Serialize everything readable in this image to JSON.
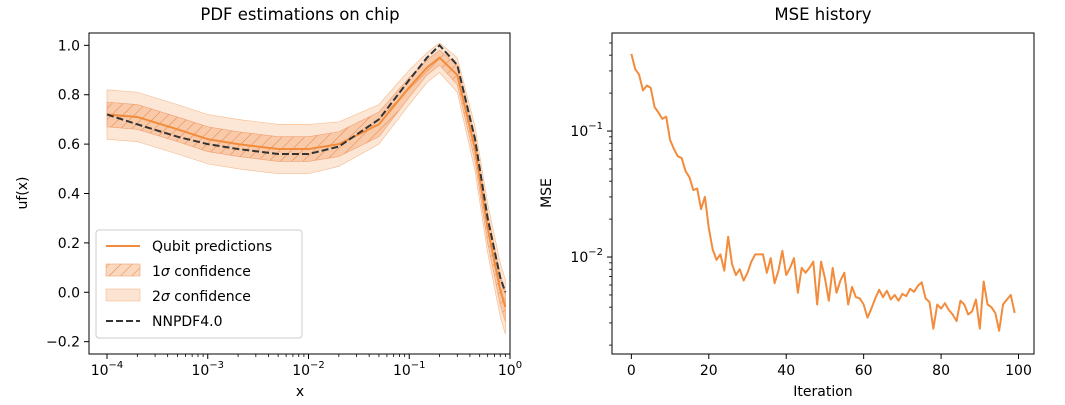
{
  "chart_data": [
    {
      "type": "line",
      "title": "PDF estimations on chip",
      "xlabel": "x",
      "ylabel": "uf(x)",
      "xscale": "log",
      "xlim": [
        0.0001,
        1
      ],
      "ylim": [
        -0.25,
        1.05
      ],
      "xticks": [
        0.0001,
        0.001,
        0.01,
        0.1,
        1
      ],
      "xtick_labels": [
        {
          "base": "10",
          "exp": "−4"
        },
        {
          "base": "10",
          "exp": "−3"
        },
        {
          "base": "10",
          "exp": "−2"
        },
        {
          "base": "10",
          "exp": "−1"
        },
        {
          "base": "10",
          "exp": "0"
        }
      ],
      "yticks": [
        -0.2,
        0.0,
        0.2,
        0.4,
        0.6,
        0.8,
        1.0
      ],
      "ytick_labels": [
        "−0.2",
        "0.0",
        "0.2",
        "0.4",
        "0.6",
        "0.8",
        "1.0"
      ],
      "legend_position": "lower-left",
      "colors": {
        "prediction": "#f28c3c",
        "band": "#f5a46a",
        "reference": "#333333"
      },
      "legend": [
        {
          "key": "pred",
          "label": "Qubit predictions"
        },
        {
          "key": "sig1",
          "label_prefix": "1",
          "label_sigma": "σ",
          "label_suffix": " confidence"
        },
        {
          "key": "sig2",
          "label_prefix": "2",
          "label_sigma": "σ",
          "label_suffix": " confidence"
        },
        {
          "key": "ref",
          "label": "NNPDF4.0"
        }
      ],
      "series": [
        {
          "name": "Qubit predictions",
          "x": [
            0.0001,
            0.0002,
            0.0005,
            0.001,
            0.002,
            0.005,
            0.01,
            0.02,
            0.05,
            0.1,
            0.15,
            0.2,
            0.3,
            0.45,
            0.6,
            0.8,
            0.9
          ],
          "y": [
            0.72,
            0.71,
            0.66,
            0.62,
            0.6,
            0.58,
            0.58,
            0.6,
            0.68,
            0.83,
            0.91,
            0.95,
            0.88,
            0.58,
            0.26,
            0.01,
            -0.06
          ],
          "sigma1": [
            0.05,
            0.05,
            0.05,
            0.05,
            0.05,
            0.05,
            0.05,
            0.05,
            0.05,
            0.04,
            0.03,
            0.03,
            0.04,
            0.05,
            0.06,
            0.06,
            0.06
          ],
          "sigma2": [
            0.1,
            0.1,
            0.1,
            0.1,
            0.1,
            0.1,
            0.1,
            0.09,
            0.08,
            0.07,
            0.06,
            0.06,
            0.07,
            0.09,
            0.1,
            0.11,
            0.11
          ]
        },
        {
          "name": "NNPDF4.0",
          "x": [
            0.0001,
            0.0002,
            0.0005,
            0.001,
            0.002,
            0.005,
            0.01,
            0.02,
            0.05,
            0.1,
            0.15,
            0.2,
            0.3,
            0.45,
            0.6,
            0.8,
            0.9
          ],
          "y": [
            0.72,
            0.68,
            0.63,
            0.6,
            0.58,
            0.56,
            0.56,
            0.59,
            0.7,
            0.86,
            0.95,
            1.0,
            0.92,
            0.62,
            0.3,
            0.06,
            0.0
          ]
        }
      ]
    },
    {
      "type": "line",
      "title": "MSE history",
      "xlabel": "Iteration",
      "ylabel": "MSE",
      "yscale": "log",
      "xlim": [
        -5,
        104
      ],
      "ylim": [
        0.0017,
        0.6
      ],
      "xticks": [
        0,
        20,
        40,
        60,
        80,
        100
      ],
      "xtick_labels": [
        "0",
        "20",
        "40",
        "60",
        "80",
        "100"
      ],
      "ytick_major": [
        0.1,
        0.01
      ],
      "ytick_major_labels": [
        {
          "base": "10",
          "exp": "−1"
        },
        {
          "base": "10",
          "exp": "−2"
        }
      ],
      "color": "#f28c3c",
      "series": [
        {
          "x": [
            0,
            1,
            2,
            3,
            4,
            5,
            6,
            7,
            8,
            9,
            10,
            11,
            12,
            13,
            14,
            15,
            16,
            17,
            18,
            19,
            20,
            21,
            22,
            23,
            24,
            25,
            26,
            27,
            28,
            29,
            30,
            31,
            32,
            33,
            34,
            35,
            36,
            37,
            38,
            39,
            40,
            41,
            42,
            43,
            44,
            45,
            46,
            47,
            48,
            49,
            50,
            51,
            52,
            53,
            54,
            55,
            56,
            57,
            58,
            59,
            60,
            61,
            62,
            63,
            64,
            65,
            66,
            67,
            68,
            69,
            70,
            71,
            72,
            73,
            74,
            75,
            76,
            77,
            78,
            79,
            80,
            81,
            82,
            83,
            84,
            85,
            86,
            87,
            88,
            89,
            90,
            91,
            92,
            93,
            94,
            95,
            96,
            97,
            98,
            99
          ],
          "y": [
            0.41,
            0.31,
            0.28,
            0.21,
            0.23,
            0.22,
            0.155,
            0.14,
            0.125,
            0.13,
            0.085,
            0.072,
            0.063,
            0.061,
            0.048,
            0.043,
            0.034,
            0.035,
            0.024,
            0.03,
            0.017,
            0.0115,
            0.0095,
            0.0105,
            0.0078,
            0.0145,
            0.0088,
            0.0072,
            0.008,
            0.0065,
            0.0075,
            0.0092,
            0.0105,
            0.0105,
            0.0105,
            0.0075,
            0.0098,
            0.0062,
            0.0078,
            0.0112,
            0.0072,
            0.0082,
            0.0098,
            0.0052,
            0.0082,
            0.0075,
            0.0082,
            0.0092,
            0.0042,
            0.0092,
            0.0068,
            0.0045,
            0.0082,
            0.0052,
            0.0065,
            0.0075,
            0.0042,
            0.0058,
            0.0048,
            0.0047,
            0.0042,
            0.0033,
            0.0039,
            0.0047,
            0.0055,
            0.0048,
            0.0054,
            0.0046,
            0.005,
            0.0045,
            0.0051,
            0.0049,
            0.0056,
            0.0053,
            0.0059,
            0.0063,
            0.0047,
            0.0044,
            0.0027,
            0.0042,
            0.0039,
            0.0043,
            0.0038,
            0.0035,
            0.0031,
            0.0045,
            0.0042,
            0.0035,
            0.0037,
            0.0046,
            0.0027,
            0.0064,
            0.0042,
            0.004,
            0.0036,
            0.0026,
            0.0042,
            0.0046,
            0.005,
            0.0036
          ]
        }
      ]
    }
  ]
}
